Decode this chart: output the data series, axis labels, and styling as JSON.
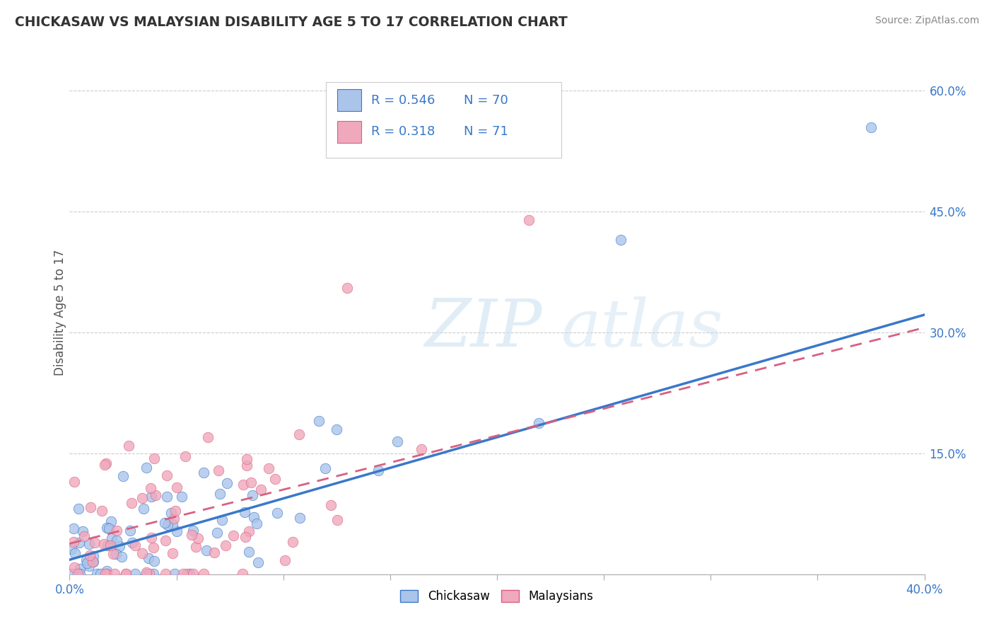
{
  "title": "CHICKASAW VS MALAYSIAN DISABILITY AGE 5 TO 17 CORRELATION CHART",
  "source": "Source: ZipAtlas.com",
  "ylabel": "Disability Age 5 to 17",
  "right_yticks": [
    "60.0%",
    "45.0%",
    "30.0%",
    "15.0%"
  ],
  "right_ytick_vals": [
    0.6,
    0.45,
    0.3,
    0.15
  ],
  "legend_chickasaw_R": "0.546",
  "legend_chickasaw_N": "70",
  "legend_malaysian_R": "0.318",
  "legend_malaysian_N": "71",
  "chickasaw_color": "#aac4ea",
  "malaysian_color": "#f0a8bc",
  "chickasaw_line_color": "#3a78c9",
  "malaysian_line_color": "#d86080",
  "xmin": 0.0,
  "xmax": 0.4,
  "ymin": 0.0,
  "ymax": 0.65,
  "watermark": "ZIPatlas"
}
